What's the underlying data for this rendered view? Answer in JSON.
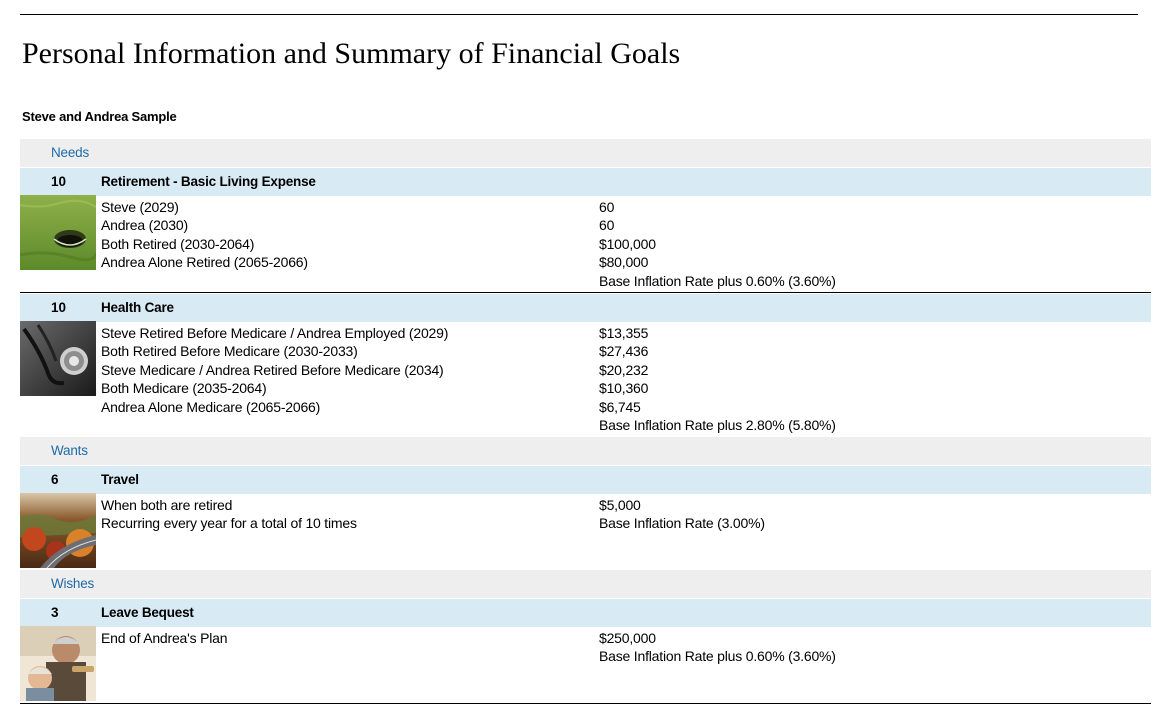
{
  "title": "Personal Information and Summary of Financial Goals",
  "client_name": "Steve  and Andrea Sample",
  "categories": [
    {
      "label": "Needs",
      "goals": [
        {
          "priority": "10",
          "name": "Retirement - Basic Living Expense",
          "thumb_icon": "golf-hole-icon",
          "lines": [
            "Steve  (2029)",
            "Andrea (2030)",
            "Both Retired (2030-2064)",
            "Andrea Alone Retired (2065-2066)"
          ],
          "values": [
            "60",
            "60",
            "$100,000",
            "$80,000",
            "Base Inflation Rate plus 0.60% (3.60%)"
          ]
        },
        {
          "priority": "10",
          "name": "Health Care",
          "thumb_icon": "stethoscope-icon",
          "lines": [
            "Steve  Retired Before Medicare / Andrea Employed (2029)",
            "Both Retired Before Medicare (2030-2033)",
            "Steve  Medicare / Andrea Retired Before Medicare (2034)",
            "Both Medicare (2035-2064)",
            "Andrea Alone Medicare (2065-2066)"
          ],
          "values": [
            "$13,355",
            "$27,436",
            "$20,232",
            "$10,360",
            "$6,745",
            "Base Inflation Rate plus 2.80% (5.80%)"
          ]
        }
      ]
    },
    {
      "label": "Wants",
      "goals": [
        {
          "priority": "6",
          "name": "Travel",
          "thumb_icon": "autumn-road-icon",
          "lines": [
            "When both are retired",
            "Recurring every year for a total of 10 times"
          ],
          "values": [
            "$5,000",
            "Base Inflation Rate (3.00%)"
          ]
        }
      ]
    },
    {
      "label": "Wishes",
      "goals": [
        {
          "priority": "3",
          "name": "Leave Bequest",
          "thumb_icon": "grandparents-icon",
          "lines": [
            "End of Andrea's Plan"
          ],
          "values": [
            "$250,000",
            "Base Inflation Rate plus 0.60% (3.60%)"
          ]
        }
      ]
    }
  ]
}
